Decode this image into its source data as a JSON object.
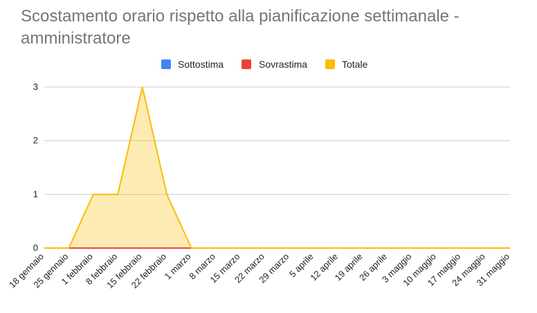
{
  "chart_data": {
    "type": "area",
    "title": "Scostamento orario rispetto alla pianificazione settimanale - amministratore",
    "legend_position": "top",
    "grid": true,
    "x": [
      "18 gennaio",
      "25 gennaio",
      "1 febbraio",
      "8 febbraio",
      "15 febbraio",
      "22 febbraio",
      "1 marzo",
      "8 marzo",
      "15 marzo",
      "22 marzo",
      "29 marzo",
      "5 aprile",
      "12 aprile",
      "19 aprile",
      "26 aprile",
      "3 maggio",
      "10 maggio",
      "17 maggio",
      "24 maggio",
      "31 maggio"
    ],
    "ylim": [
      0,
      3
    ],
    "yticks": [
      "0",
      "1",
      "2",
      "3"
    ],
    "series": [
      {
        "name": "Sottostima",
        "color": "#4285f4",
        "values": [
          0,
          0,
          0,
          0,
          0,
          0,
          0,
          0,
          0,
          0,
          0,
          0,
          0,
          0,
          0,
          0,
          0,
          0,
          0,
          0
        ]
      },
      {
        "name": "Sovrastima",
        "color": "#ea4335",
        "values": [
          0,
          0,
          0,
          0,
          0,
          0,
          0,
          0,
          0,
          0,
          0,
          0,
          0,
          0,
          0,
          0,
          0,
          0,
          0,
          0
        ]
      },
      {
        "name": "Totale",
        "color": "#fbbc04",
        "values": [
          0,
          0,
          1,
          1,
          3,
          1,
          0,
          0,
          0,
          0,
          0,
          0,
          0,
          0,
          0,
          0,
          0,
          0,
          0,
          0
        ]
      }
    ]
  }
}
